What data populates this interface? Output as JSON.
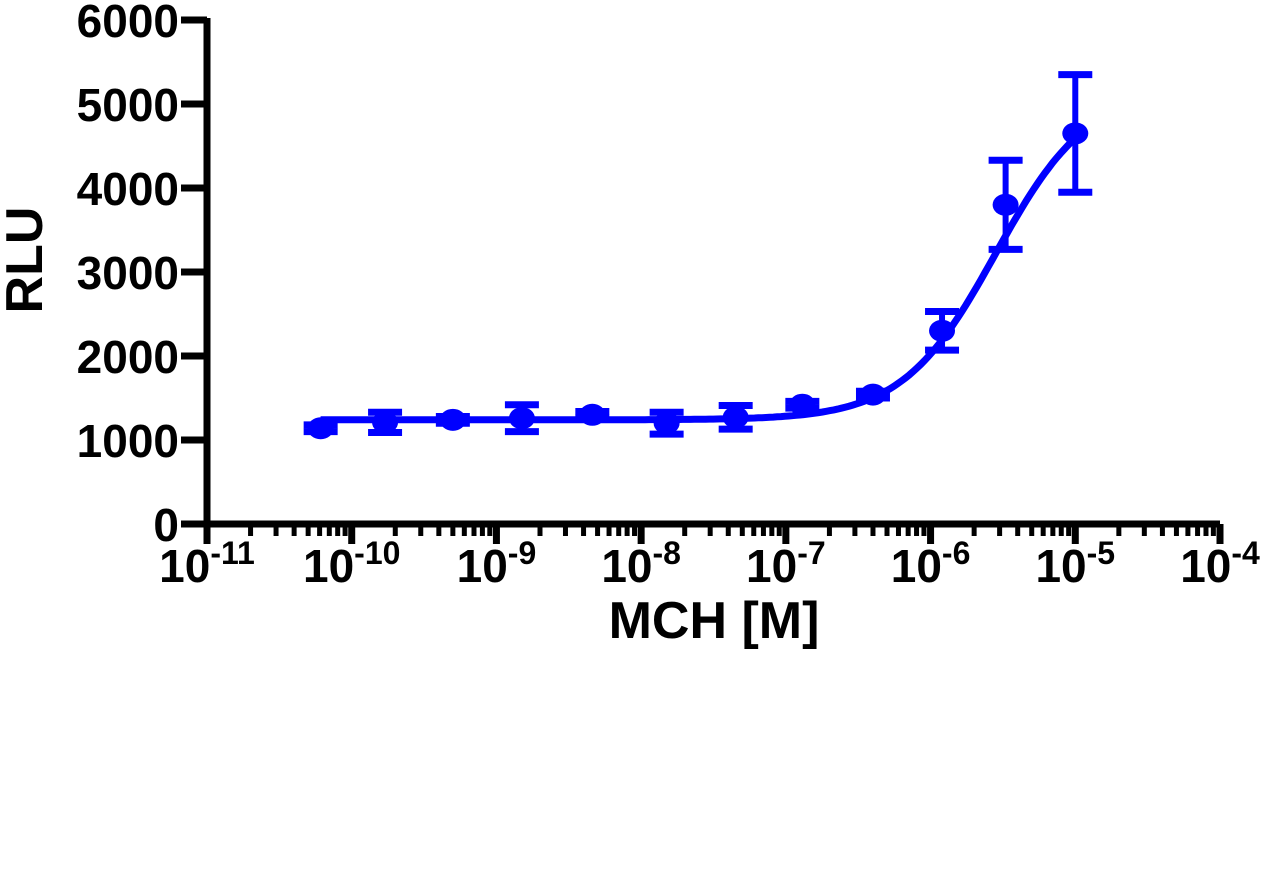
{
  "chart_data": {
    "type": "scatter",
    "title": "",
    "xlabel": "MCH [M]",
    "ylabel": "RLU",
    "xscale": "log",
    "xlim": [
      1e-11,
      0.0001
    ],
    "ylim": [
      0,
      6000
    ],
    "grid": false,
    "legend": "none",
    "y_ticks": [
      "0",
      "1000",
      "2000",
      "3000",
      "4000",
      "5000",
      "6000"
    ],
    "x_ticks": [
      {
        "base": "10",
        "exp": "-11"
      },
      {
        "base": "10",
        "exp": "-10"
      },
      {
        "base": "10",
        "exp": "-9"
      },
      {
        "base": "10",
        "exp": "-8"
      },
      {
        "base": "10",
        "exp": "-7"
      },
      {
        "base": "10",
        "exp": "-6"
      },
      {
        "base": "10",
        "exp": "-5"
      },
      {
        "base": "10",
        "exp": "-4"
      }
    ],
    "series": [
      {
        "points": [
          {
            "x": 6.1e-11,
            "y": 1140,
            "err": 40
          },
          {
            "x": 1.7e-10,
            "y": 1210,
            "err": 120
          },
          {
            "x": 5e-10,
            "y": 1240,
            "err": 40
          },
          {
            "x": 1.5e-09,
            "y": 1260,
            "err": 160
          },
          {
            "x": 4.6e-09,
            "y": 1300,
            "err": 40
          },
          {
            "x": 1.5e-08,
            "y": 1200,
            "err": 130
          },
          {
            "x": 4.5e-08,
            "y": 1270,
            "err": 140
          },
          {
            "x": 1.3e-07,
            "y": 1420,
            "err": 40
          },
          {
            "x": 4e-07,
            "y": 1540,
            "err": 40
          },
          {
            "x": 1.2e-06,
            "y": 2300,
            "err": 230
          },
          {
            "x": 3.3e-06,
            "y": 3800,
            "err": 530
          },
          {
            "x": 1e-05,
            "y": 4650,
            "err": 700
          }
        ],
        "fit": {
          "model": "sigmoidal dose-response",
          "bottom": 1240,
          "top": 5200,
          "logEC50": -5.55,
          "hill": 1.35
        }
      }
    ]
  },
  "colors": {
    "series": "#0000ff",
    "axis": "#000000"
  }
}
